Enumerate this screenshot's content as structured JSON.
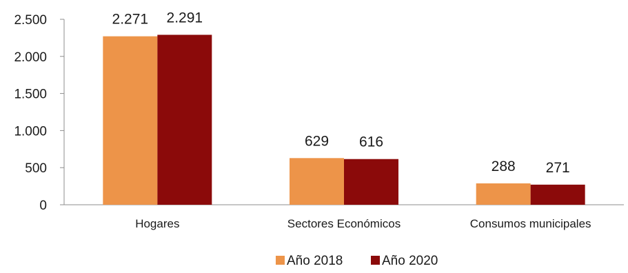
{
  "chart_data": {
    "type": "bar",
    "categories": [
      "Hogares",
      "Sectores  Económicos",
      "Consumos  municipales"
    ],
    "series": [
      {
        "name": "Año 2018",
        "color": "#ED9449",
        "values": [
          2271,
          629,
          288
        ],
        "labels": [
          "2.271",
          "629",
          "288"
        ]
      },
      {
        "name": "Año 2020",
        "color": "#8B0A0A",
        "values": [
          2291,
          616,
          271
        ],
        "labels": [
          "2.291",
          "616",
          "271"
        ]
      }
    ],
    "ylim": [
      0,
      2500
    ],
    "yticks": [
      0,
      500,
      1000,
      1500,
      2000,
      2500
    ],
    "ytick_labels": [
      "0",
      "500",
      "1.000",
      "1.500",
      "2.000",
      "2.500"
    ],
    "grid": false,
    "legend_position": "bottom-center",
    "title": "",
    "xlabel": "",
    "ylabel": ""
  }
}
